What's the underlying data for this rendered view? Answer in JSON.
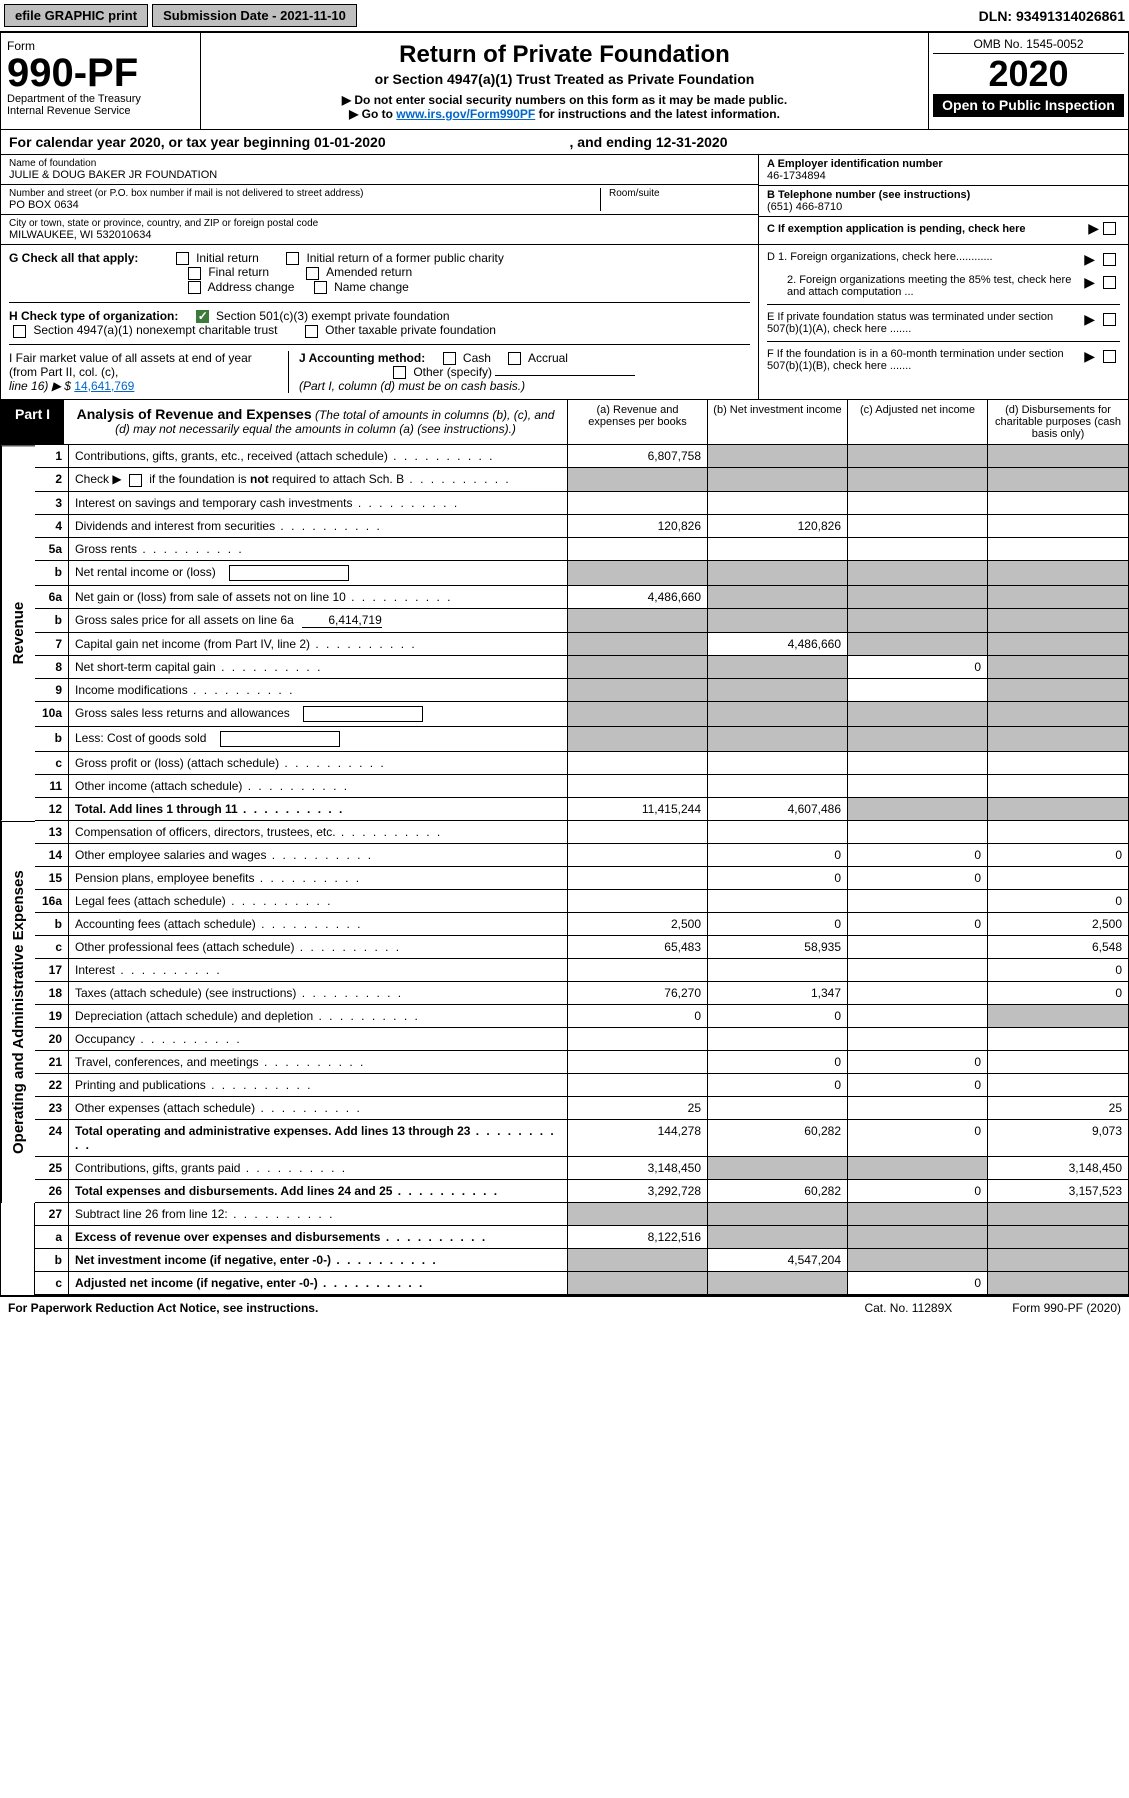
{
  "topbar": {
    "efile": "efile GRAPHIC print",
    "subdate_label": "Submission Date - ",
    "subdate": "2021-11-10",
    "dln_label": "DLN: ",
    "dln": "93491314026861"
  },
  "header": {
    "form": "Form",
    "number": "990-PF",
    "dept": "Department of the Treasury",
    "irs": "Internal Revenue Service",
    "title": "Return of Private Foundation",
    "sub": "or Section 4947(a)(1) Trust Treated as Private Foundation",
    "inst1": "▶ Do not enter social security numbers on this form as it may be made public.",
    "inst2_pre": "▶ Go to ",
    "inst2_link": "www.irs.gov/Form990PF",
    "inst2_post": " for instructions and the latest information.",
    "omb": "OMB No. 1545-0052",
    "year": "2020",
    "open": "Open to Public Inspection"
  },
  "calyear": {
    "pre": "For calendar year 2020, or tax year beginning ",
    "begin": "01-01-2020",
    "mid": " , and ending ",
    "end": "12-31-2020"
  },
  "info": {
    "name_label": "Name of foundation",
    "name": "JULIE & DOUG BAKER JR FOUNDATION",
    "addr_label": "Number and street (or P.O. box number if mail is not delivered to street address)",
    "addr": "PO BOX 0634",
    "room_label": "Room/suite",
    "city_label": "City or town, state or province, country, and ZIP or foreign postal code",
    "city": "MILWAUKEE, WI  532010634",
    "a_label": "A Employer identification number",
    "a_val": "46-1734894",
    "b_label": "B Telephone number (see instructions)",
    "b_val": "(651) 466-8710",
    "c_label": "C If exemption application is pending, check here"
  },
  "g": {
    "label": "G Check all that apply:",
    "o1": "Initial return",
    "o2": "Initial return of a former public charity",
    "o3": "Final return",
    "o4": "Amended return",
    "o5": "Address change",
    "o6": "Name change"
  },
  "h": {
    "label": "H Check type of organization:",
    "o1": "Section 501(c)(3) exempt private foundation",
    "o2": "Section 4947(a)(1) nonexempt charitable trust",
    "o3": "Other taxable private foundation"
  },
  "i": {
    "label1": "I Fair market value of all assets at end of year (from Part II, col. (c),",
    "label2": "line 16) ▶ $ ",
    "amt": "14,641,769"
  },
  "j": {
    "label": "J Accounting method:",
    "o1": "Cash",
    "o2": "Accrual",
    "o3": "Other (specify)",
    "note": "(Part I, column (d) must be on cash basis.)"
  },
  "right": {
    "d1": "D 1. Foreign organizations, check here............",
    "d2": "2. Foreign organizations meeting the 85% test, check here and attach computation ...",
    "e": "E  If private foundation status was terminated under section 507(b)(1)(A), check here .......",
    "f": "F  If the foundation is in a 60-month termination under section 507(b)(1)(B), check here .......",
    "arrow": "▶"
  },
  "part1": {
    "tag": "Part I",
    "title": "Analysis of Revenue and Expenses",
    "note": "(The total of amounts in columns (b), (c), and (d) may not necessarily equal the amounts in column (a) (see instructions).)",
    "col_a": "(a) Revenue and expenses per books",
    "col_b": "(b) Net investment income",
    "col_c": "(c) Adjusted net income",
    "col_d": "(d) Disbursements for charitable purposes (cash basis only)"
  },
  "side": {
    "rev": "Revenue",
    "exp": "Operating and Administrative Expenses"
  },
  "rows": {
    "r1": {
      "n": "1",
      "d": "Contributions, gifts, grants, etc., received (attach schedule)",
      "a": "6,807,758"
    },
    "r2": {
      "n": "2",
      "d": "Check ▶ ☐ if the foundation is not required to attach Sch. B"
    },
    "r3": {
      "n": "3",
      "d": "Interest on savings and temporary cash investments"
    },
    "r4": {
      "n": "4",
      "d": "Dividends and interest from securities",
      "a": "120,826",
      "b": "120,826"
    },
    "r5a": {
      "n": "5a",
      "d": "Gross rents"
    },
    "r5b": {
      "n": "b",
      "d": "Net rental income or (loss)"
    },
    "r6a": {
      "n": "6a",
      "d": "Net gain or (loss) from sale of assets not on line 10",
      "a": "4,486,660"
    },
    "r6b": {
      "n": "b",
      "d": "Gross sales price for all assets on line 6a",
      "amt": "6,414,719"
    },
    "r7": {
      "n": "7",
      "d": "Capital gain net income (from Part IV, line 2)",
      "b": "4,486,660"
    },
    "r8": {
      "n": "8",
      "d": "Net short-term capital gain",
      "c": "0"
    },
    "r9": {
      "n": "9",
      "d": "Income modifications"
    },
    "r10a": {
      "n": "10a",
      "d": "Gross sales less returns and allowances"
    },
    "r10b": {
      "n": "b",
      "d": "Less: Cost of goods sold"
    },
    "r10c": {
      "n": "c",
      "d": "Gross profit or (loss) (attach schedule)"
    },
    "r11": {
      "n": "11",
      "d": "Other income (attach schedule)"
    },
    "r12": {
      "n": "12",
      "d": "Total. Add lines 1 through 11",
      "a": "11,415,244",
      "b": "4,607,486"
    },
    "r13": {
      "n": "13",
      "d": "Compensation of officers, directors, trustees, etc."
    },
    "r14": {
      "n": "14",
      "d": "Other employee salaries and wages",
      "b": "0",
      "c": "0",
      "dd": "0"
    },
    "r15": {
      "n": "15",
      "d": "Pension plans, employee benefits",
      "b": "0",
      "c": "0"
    },
    "r16a": {
      "n": "16a",
      "d": "Legal fees (attach schedule)",
      "dd": "0"
    },
    "r16b": {
      "n": "b",
      "d": "Accounting fees (attach schedule)",
      "a": "2,500",
      "b": "0",
      "c": "0",
      "dd": "2,500"
    },
    "r16c": {
      "n": "c",
      "d": "Other professional fees (attach schedule)",
      "a": "65,483",
      "b": "58,935",
      "dd": "6,548"
    },
    "r17": {
      "n": "17",
      "d": "Interest",
      "dd": "0"
    },
    "r18": {
      "n": "18",
      "d": "Taxes (attach schedule) (see instructions)",
      "a": "76,270",
      "b": "1,347",
      "dd": "0"
    },
    "r19": {
      "n": "19",
      "d": "Depreciation (attach schedule) and depletion",
      "a": "0",
      "b": "0"
    },
    "r20": {
      "n": "20",
      "d": "Occupancy"
    },
    "r21": {
      "n": "21",
      "d": "Travel, conferences, and meetings",
      "b": "0",
      "c": "0"
    },
    "r22": {
      "n": "22",
      "d": "Printing and publications",
      "b": "0",
      "c": "0"
    },
    "r23": {
      "n": "23",
      "d": "Other expenses (attach schedule)",
      "a": "25",
      "dd": "25"
    },
    "r24": {
      "n": "24",
      "d": "Total operating and administrative expenses. Add lines 13 through 23",
      "a": "144,278",
      "b": "60,282",
      "c": "0",
      "dd": "9,073"
    },
    "r25": {
      "n": "25",
      "d": "Contributions, gifts, grants paid",
      "a": "3,148,450",
      "dd": "3,148,450"
    },
    "r26": {
      "n": "26",
      "d": "Total expenses and disbursements. Add lines 24 and 25",
      "a": "3,292,728",
      "b": "60,282",
      "c": "0",
      "dd": "3,157,523"
    },
    "r27": {
      "n": "27",
      "d": "Subtract line 26 from line 12:"
    },
    "r27a": {
      "n": "a",
      "d": "Excess of revenue over expenses and disbursements",
      "a": "8,122,516"
    },
    "r27b": {
      "n": "b",
      "d": "Net investment income (if negative, enter -0-)",
      "b": "4,547,204"
    },
    "r27c": {
      "n": "c",
      "d": "Adjusted net income (if negative, enter -0-)",
      "c": "0"
    }
  },
  "footer": {
    "l": "For Paperwork Reduction Act Notice, see instructions.",
    "c": "Cat. No. 11289X",
    "r": "Form 990-PF (2020)"
  }
}
